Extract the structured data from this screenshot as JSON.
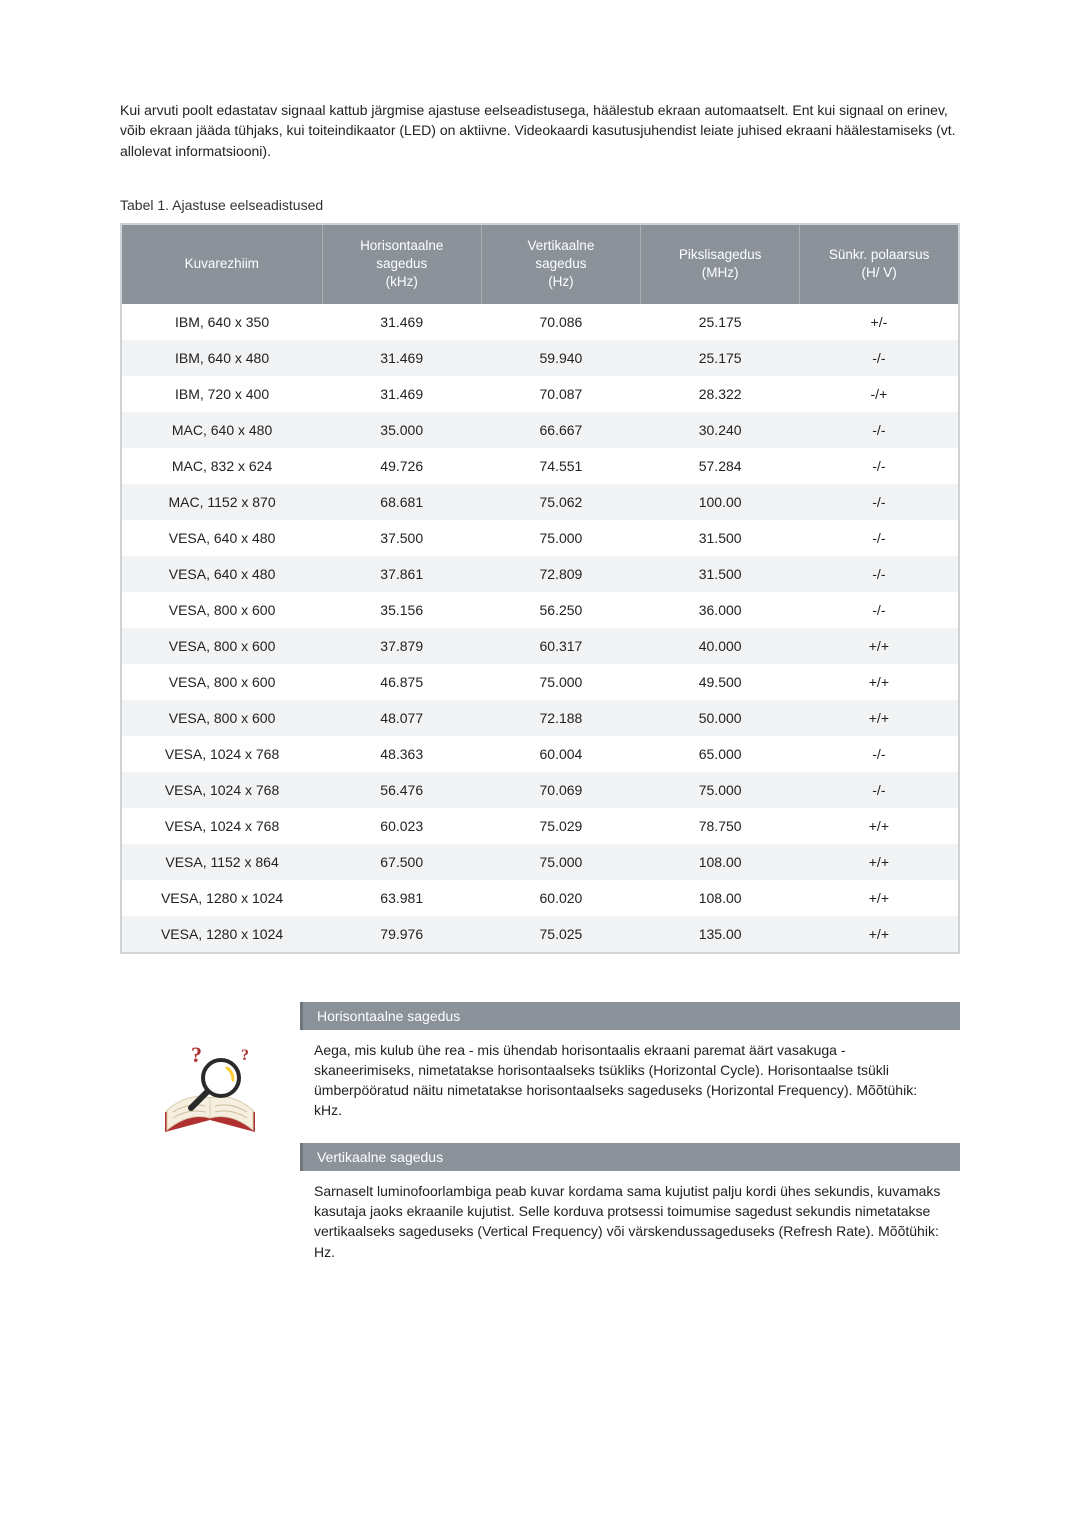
{
  "intro": "Kui arvuti poolt edastatav signaal kattub järgmise ajastuse eelseadistusega, häälestub ekraan automaatselt. Ent kui signaal on erinev, võib ekraan jääda tühjaks, kui toiteindikaator (LED) on aktiivne. Videokaardi kasutusjuhendist leiate juhised ekraani häälestamiseks (vt. allolevat informatsiooni).",
  "caption": "Tabel 1. Ajastuse eelseadistused",
  "table": {
    "type": "table",
    "header_bg": "#8b929a",
    "header_fg": "#ffffff",
    "row_alt_bg": "#f2f3f4",
    "row_bg": "#ffffff",
    "border_color": "#cfd3d6",
    "col_widths_pct": [
      24,
      19,
      19,
      19,
      19
    ],
    "columns": [
      "Kuvarezhiim",
      "Horisontaalne\nsagedus\n(kHz)",
      "Vertikaalne\nsagedus\n(Hz)",
      "Pikslisagedus\n(MHz)",
      "Sünkr. polaarsus\n(H/ V)"
    ],
    "rows": [
      [
        "IBM, 640 x 350",
        "31.469",
        "70.086",
        "25.175",
        "+/-"
      ],
      [
        "IBM, 640 x 480",
        "31.469",
        "59.940",
        "25.175",
        "-/-"
      ],
      [
        "IBM, 720 x 400",
        "31.469",
        "70.087",
        "28.322",
        "-/+"
      ],
      [
        "MAC, 640 x 480",
        "35.000",
        "66.667",
        "30.240",
        "-/-"
      ],
      [
        "MAC, 832 x 624",
        "49.726",
        "74.551",
        "57.284",
        "-/-"
      ],
      [
        "MAC, 1152 x 870",
        "68.681",
        "75.062",
        "100.00",
        "-/-"
      ],
      [
        "VESA, 640 x 480",
        "37.500",
        "75.000",
        "31.500",
        "-/-"
      ],
      [
        "VESA, 640 x 480",
        "37.861",
        "72.809",
        "31.500",
        "-/-"
      ],
      [
        "VESA, 800 x 600",
        "35.156",
        "56.250",
        "36.000",
        "-/-"
      ],
      [
        "VESA, 800 x 600",
        "37.879",
        "60.317",
        "40.000",
        "+/+"
      ],
      [
        "VESA, 800 x 600",
        "46.875",
        "75.000",
        "49.500",
        "+/+"
      ],
      [
        "VESA, 800 x 600",
        "48.077",
        "72.188",
        "50.000",
        "+/+"
      ],
      [
        "VESA, 1024 x 768",
        "48.363",
        "60.004",
        "65.000",
        "-/-"
      ],
      [
        "VESA, 1024 x 768",
        "56.476",
        "70.069",
        "75.000",
        "-/-"
      ],
      [
        "VESA, 1024 x 768",
        "60.023",
        "75.029",
        "78.750",
        "+/+"
      ],
      [
        "VESA, 1152 x 864",
        "67.500",
        "75.000",
        "108.00",
        "+/+"
      ],
      [
        "VESA, 1280 x 1024",
        "63.981",
        "60.020",
        "108.00",
        "+/+"
      ],
      [
        "VESA, 1280 x 1024",
        "79.976",
        "75.025",
        "135.00",
        "+/+"
      ]
    ]
  },
  "info": {
    "header_bg": "#8b929a",
    "header_fg": "#ffffff",
    "sections": [
      {
        "title": "Horisontaalne sagedus",
        "body": "Aega, mis kulub ühe rea - mis ühendab horisontaalis ekraani paremat äärt vasakuga - skaneerimiseks, nimetatakse horisontaalseks tsükliks (Horizontal Cycle). Horisontaalse tsükli ümberpööratud näitu nimetatakse horisontaalseks sageduseks (Horizontal Frequency). Mõõtühik: kHz."
      },
      {
        "title": "Vertikaalne sagedus",
        "body": "Sarnaselt luminofoorlambiga peab kuvar kordama sama kujutist palju kordi ühes sekundis, kuvamaks kasutaja jaoks ekraanile kujutist. Selle korduva protsessi toimumise sagedust sekundis nimetatakse vertikaalseks sageduseks (Vertical Frequency) või värskendussageduseks (Refresh Rate). Mõõtühik: Hz."
      }
    ],
    "icon_name": "open-book-magnifier-icon",
    "icon_colors": {
      "spine": "#b03030",
      "pages": "#f6efe0",
      "page_edge": "#d9cfae",
      "glass_ring": "#2a2a2a",
      "glass_handle": "#2a2a2a",
      "glass_glint": "#ffcc33"
    }
  }
}
